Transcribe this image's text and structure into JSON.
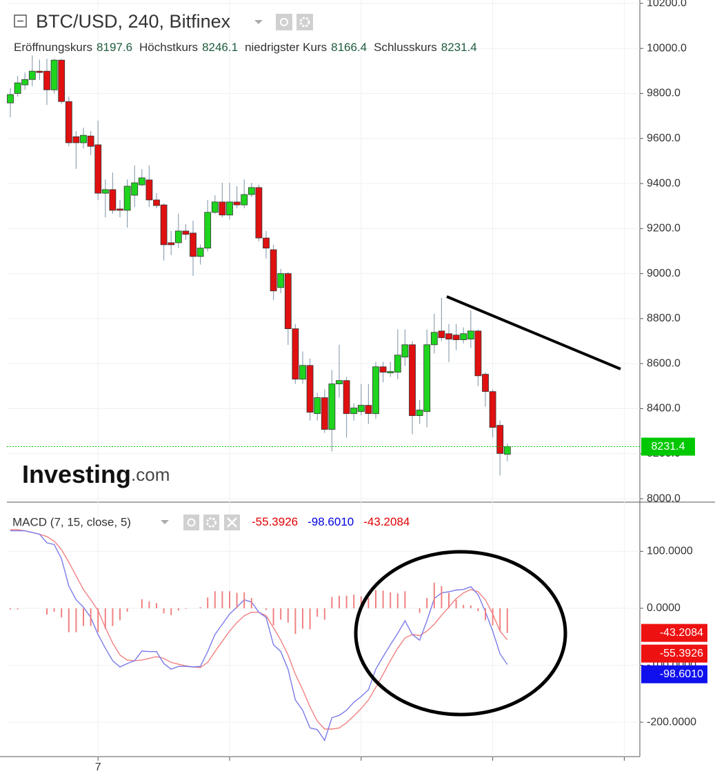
{
  "chart_data": {
    "type": "candlestick",
    "title": "BTC/USD, 240, Bitfinex",
    "ohlc_labels": [
      "Eröffnungskurs",
      "Höchstkurs",
      "niedrigster Kurs",
      "Schlusskurs"
    ],
    "categories": [
      null,
      null,
      null,
      null,
      null,
      null,
      null,
      null,
      null,
      null,
      null,
      null,
      "7",
      null,
      null,
      null,
      null,
      null,
      null,
      null,
      null,
      null,
      null,
      null,
      null,
      null,
      null,
      null,
      null,
      null,
      null,
      null,
      null,
      null,
      null,
      null,
      null,
      null,
      null,
      null,
      null,
      null,
      null,
      null,
      null,
      null,
      null,
      null,
      null,
      null,
      null,
      null,
      null,
      null,
      null,
      null,
      null,
      null,
      null,
      null,
      null,
      null,
      null,
      null,
      null,
      null,
      null,
      null,
      null
    ],
    "open": [
      9758,
      9800,
      9838,
      9862,
      9899,
      9899,
      9816,
      9948,
      9764,
      9608,
      9581,
      9611,
      9572,
      9357,
      9373,
      9287,
      9281,
      9348,
      9394,
      9416,
      9327,
      9305,
      9137,
      9137,
      9189,
      9180,
      9076,
      9113,
      9272,
      9318,
      9260,
      9318,
      9305,
      9351,
      9382,
      9158,
      9106,
      8938,
      9000,
      8755,
      8531,
      8592,
      8378,
      8449,
      8308,
      8510,
      8525,
      8378,
      8387,
      8415,
      8378,
      8586,
      8559,
      8562,
      8629,
      8684,
      8369,
      8387,
      8684,
      8745,
      8733,
      8727,
      8706,
      8709,
      8745,
      8553,
      8476,
      8326,
      8197.6
    ],
    "high": [
      9823,
      9878,
      9893,
      9969,
      9950,
      9954,
      9954,
      9954,
      9786,
      9633,
      9648,
      9633,
      9679,
      9418,
      9449,
      9326,
      9418,
      9480,
      9464,
      9480,
      9357,
      9311,
      9189,
      9266,
      9220,
      9235,
      9129,
      9326,
      9348,
      9403,
      9403,
      9388,
      9418,
      9403,
      9394,
      9189,
      9128,
      9021,
      9007,
      8776,
      8654,
      8623,
      8470,
      8486,
      8571,
      8684,
      8541,
      8424,
      8510,
      8510,
      8608,
      8608,
      8608,
      8752,
      8752,
      8700,
      8439,
      8752,
      8822,
      8892,
      8776,
      8776,
      8761,
      8837,
      8752,
      8562,
      8486,
      8347,
      8246.1
    ],
    "low": [
      9694,
      9786,
      9816,
      9832,
      9860,
      9749,
      9801,
      9755,
      9565,
      9465,
      9556,
      9526,
      9327,
      9250,
      9266,
      9250,
      9204,
      9296,
      9388,
      9296,
      9290,
      9058,
      9082,
      9113,
      9150,
      8990,
      9040,
      9098,
      9265,
      9250,
      9240,
      9290,
      9290,
      9340,
      9143,
      9067,
      8882,
      8913,
      8683,
      8510,
      8510,
      8347,
      8347,
      8292,
      8210,
      8449,
      8271,
      8347,
      8370,
      8332,
      8355,
      8517,
      8541,
      8531,
      8590,
      8286,
      8332,
      8317,
      8645,
      8700,
      8607,
      8660,
      8690,
      8670,
      8500,
      8409,
      8272,
      8103,
      8166.4
    ],
    "close": [
      9795,
      9847,
      9862,
      9899,
      9893,
      9816,
      9948,
      9764,
      9581,
      9581,
      9614,
      9565,
      9357,
      9373,
      9281,
      9281,
      9388,
      9403,
      9425,
      9327,
      9302,
      9128,
      9128,
      9189,
      9174,
      9076,
      9113,
      9272,
      9318,
      9260,
      9318,
      9305,
      9351,
      9382,
      9158,
      9113,
      8923,
      9000,
      8755,
      8531,
      8592,
      8384,
      8449,
      8308,
      8510,
      8525,
      8378,
      8403,
      8415,
      8378,
      8586,
      8562,
      8565,
      8638,
      8684,
      8369,
      8394,
      8684,
      8739,
      8715,
      8709,
      8706,
      8733,
      8745,
      8546,
      8476,
      8317,
      8201,
      8231.4
    ],
    "up_color": "#1ed41e",
    "down_color": "#e01010",
    "last_price_color": "#00c800",
    "ylim": [
      7985,
      10215
    ],
    "yticks": [
      {
        "value": 8000,
        "label": "8000.0"
      },
      {
        "value": 8200,
        "label": "8200.0"
      },
      {
        "value": 8400,
        "label": "8400.0"
      },
      {
        "value": 8600,
        "label": "8600.0"
      },
      {
        "value": 8800,
        "label": "8800.0"
      },
      {
        "value": 9000,
        "label": "9000.0"
      },
      {
        "value": 9200,
        "label": "9200.0"
      },
      {
        "value": 9400,
        "label": "9400.0"
      },
      {
        "value": 9600,
        "label": "9600.0"
      },
      {
        "value": 9800,
        "label": "9800.0"
      },
      {
        "value": 10000,
        "label": "10000.0"
      },
      {
        "value": 10200,
        "label": "10200.0"
      }
    ],
    "grid": true,
    "watermark": [
      "Investing",
      ".com"
    ],
    "macd": {
      "title": "MACD (7, 15, close, 5)",
      "ylim": [
        -258,
        184
      ],
      "yticks": [
        {
          "value": -200,
          "label": "-200.0000"
        },
        {
          "value": -100,
          "label": "-100.0000"
        },
        {
          "value": 0,
          "label": "0.0000"
        },
        {
          "value": 100,
          "label": "100.0000"
        }
      ],
      "series": [
        {
          "type": "line",
          "color": "#f28080",
          "label_color": "#e00000",
          "box_color": "#ee1111",
          "values": [
            138,
            138,
            136,
            133,
            130,
            126,
            118,
            103,
            81,
            57,
            33,
            15,
            -4,
            -34,
            -61,
            -82,
            -91,
            -92,
            -91,
            -88,
            -85,
            -88,
            -95,
            -98,
            -101,
            -103,
            -104,
            -95,
            -76,
            -58,
            -40,
            -25,
            -13,
            -7,
            -7,
            -13,
            -34,
            -56,
            -82,
            -116,
            -143,
            -173,
            -198,
            -212,
            -212,
            -210,
            -201,
            -189,
            -176,
            -161,
            -139,
            -116,
            -92,
            -70,
            -52,
            -46,
            -48,
            -40,
            -28,
            -12,
            2,
            17,
            27,
            33,
            29,
            15,
            -10,
            -40,
            -55.3926
          ]
        },
        {
          "type": "line",
          "color": "#7a7aea",
          "label_color": "#0000e0",
          "box_color": "#1010ee",
          "values": [
            136,
            136,
            136,
            133,
            130,
            115,
            112,
            87,
            39,
            15,
            2,
            -16,
            -46,
            -70,
            -92,
            -103,
            -97,
            -92,
            -75,
            -76,
            -76,
            -97,
            -107,
            -102,
            -102,
            -103,
            -102,
            -76,
            -46,
            -28,
            -10,
            2,
            15,
            11,
            -7,
            -16,
            -64,
            -76,
            -107,
            -161,
            -179,
            -210,
            -213,
            -232,
            -192,
            -188,
            -179,
            -165,
            -155,
            -143,
            -107,
            -85,
            -64,
            -44,
            -22,
            -46,
            -56,
            -22,
            17,
            27,
            29,
            32,
            33,
            38,
            24,
            -6,
            -40,
            -80,
            -98.601
          ],
          "value_labels": [
            null,
            null,
            null,
            null,
            null,
            null,
            null,
            null,
            null,
            null,
            null,
            null,
            null,
            null,
            null,
            null,
            null,
            null,
            null,
            null,
            null,
            null,
            null,
            null,
            null,
            null,
            null,
            null,
            null,
            null,
            null,
            null,
            null,
            null,
            null,
            null,
            null,
            null,
            null,
            null,
            null,
            null,
            null,
            null,
            null,
            null,
            null,
            null,
            null,
            null,
            null,
            null,
            null,
            null,
            null,
            null,
            null,
            null,
            null,
            null,
            null,
            null,
            null,
            null,
            null,
            null,
            null,
            null,
            "-98.6010"
          ]
        },
        {
          "type": "bar",
          "color": "#f08080",
          "label_color": "#e00000",
          "box_color": "#ee1111",
          "values": [
            -2,
            -2,
            0,
            0,
            0,
            -11,
            -6,
            -16,
            -42,
            -42,
            -31,
            -31,
            -42,
            -36,
            -31,
            -21,
            -6,
            0,
            16,
            12,
            9,
            -9,
            -12,
            -4,
            -1,
            0,
            2,
            19,
            30,
            30,
            30,
            27,
            28,
            18,
            0,
            -3,
            -30,
            -20,
            -25,
            -45,
            -36,
            -37,
            -15,
            -20,
            20,
            22,
            22,
            24,
            21,
            18,
            32,
            31,
            28,
            26,
            30,
            0,
            -8,
            18,
            45,
            39,
            27,
            15,
            6,
            5,
            -5,
            -21,
            -30,
            -40,
            -43.2084
          ]
        }
      ]
    }
  }
}
